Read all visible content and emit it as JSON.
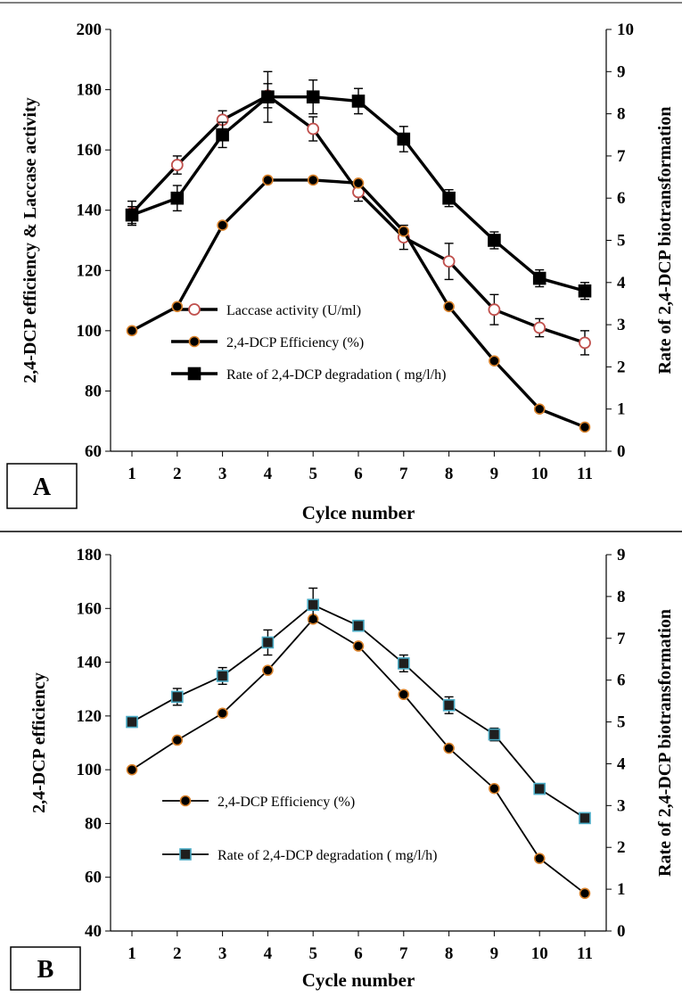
{
  "colors": {
    "axis": "#000000",
    "laccase_marker_edge": "#c0504d",
    "efficiency_marker_edge": "#d9822b",
    "rate_marker_fill_B": "#1f1f1f",
    "rate_marker_edge_B": "#4bacc6"
  },
  "chart_data": [
    {
      "panel": "A",
      "type": "line",
      "panel_label": "A",
      "xlabel": "Cylce number",
      "ylabel": "2,4-DCP efficiency & Laccase activity",
      "ylabel_right": "Rate of 2,4-DCP biotransformation",
      "categories": [
        "1",
        "2",
        "3",
        "4",
        "5",
        "6",
        "7",
        "8",
        "9",
        "10",
        "11"
      ],
      "ylim": [
        60,
        200
      ],
      "yticks": [
        "60",
        "80",
        "100",
        "120",
        "140",
        "160",
        "180",
        "200"
      ],
      "ylim_right": [
        0,
        10
      ],
      "yticks_right": [
        "0",
        "1",
        "2",
        "3",
        "4",
        "5",
        "6",
        "7",
        "8",
        "9",
        "10"
      ],
      "grid": false,
      "legend_position": "lower-left",
      "series": [
        {
          "name": "Laccase activity (U/ml)",
          "axis": "left",
          "marker": "open-circle",
          "values": [
            139,
            155,
            170,
            178,
            167,
            146,
            131,
            123,
            107,
            101,
            96
          ],
          "errors": [
            4,
            3,
            3,
            4,
            4,
            3,
            4,
            6,
            5,
            3,
            4
          ]
        },
        {
          "name": "2,4-DCP Efficiency (%)",
          "axis": "left",
          "marker": "filled-circle",
          "values": [
            100,
            108,
            135,
            150,
            150,
            149,
            133,
            108,
            90,
            74,
            68
          ],
          "errors": [
            0,
            0,
            0,
            0,
            0,
            0,
            0,
            0,
            0,
            0,
            0
          ]
        },
        {
          "name": "Rate of 2,4-DCP degradation ( mg/l/h)",
          "axis": "right",
          "marker": "filled-square",
          "values": [
            5.6,
            6.0,
            7.5,
            8.4,
            8.4,
            8.3,
            7.4,
            6.0,
            5.0,
            4.1,
            3.8
          ],
          "errors": [
            0.2,
            0.3,
            0.3,
            0.6,
            0.4,
            0.3,
            0.3,
            0.2,
            0.2,
            0.2,
            0.2
          ]
        }
      ]
    },
    {
      "panel": "B",
      "type": "line",
      "panel_label": "B",
      "xlabel": "Cycle number",
      "ylabel": "2,4-DCP efficiency",
      "ylabel_right": "Rate of 2,4-DCP biotransformation",
      "categories": [
        "1",
        "2",
        "3",
        "4",
        "5",
        "6",
        "7",
        "8",
        "9",
        "10",
        "11"
      ],
      "ylim": [
        40,
        180
      ],
      "yticks": [
        "40",
        "60",
        "80",
        "100",
        "120",
        "140",
        "160",
        "180"
      ],
      "ylim_right": [
        0,
        9
      ],
      "yticks_right": [
        "0",
        "1",
        "2",
        "3",
        "4",
        "5",
        "6",
        "7",
        "8",
        "9"
      ],
      "grid": false,
      "legend_position": "lower-left",
      "series": [
        {
          "name": "2,4-DCP Efficiency (%)",
          "axis": "left",
          "marker": "filled-circle",
          "values": [
            100,
            111,
            121,
            137,
            156,
            146,
            128,
            108,
            93,
            67,
            54
          ],
          "errors": [
            0,
            0,
            0,
            0,
            0,
            0,
            0,
            0,
            0,
            0,
            0
          ]
        },
        {
          "name": "Rate of 2,4-DCP degradation ( mg/l/h)",
          "axis": "right",
          "marker": "filled-square",
          "values": [
            5.0,
            5.6,
            6.1,
            6.9,
            7.8,
            7.3,
            6.4,
            5.4,
            4.7,
            3.4,
            2.7
          ],
          "errors": [
            0,
            0.2,
            0.2,
            0.3,
            0.4,
            0,
            0.2,
            0.2,
            0.15,
            0,
            0
          ]
        }
      ]
    }
  ]
}
